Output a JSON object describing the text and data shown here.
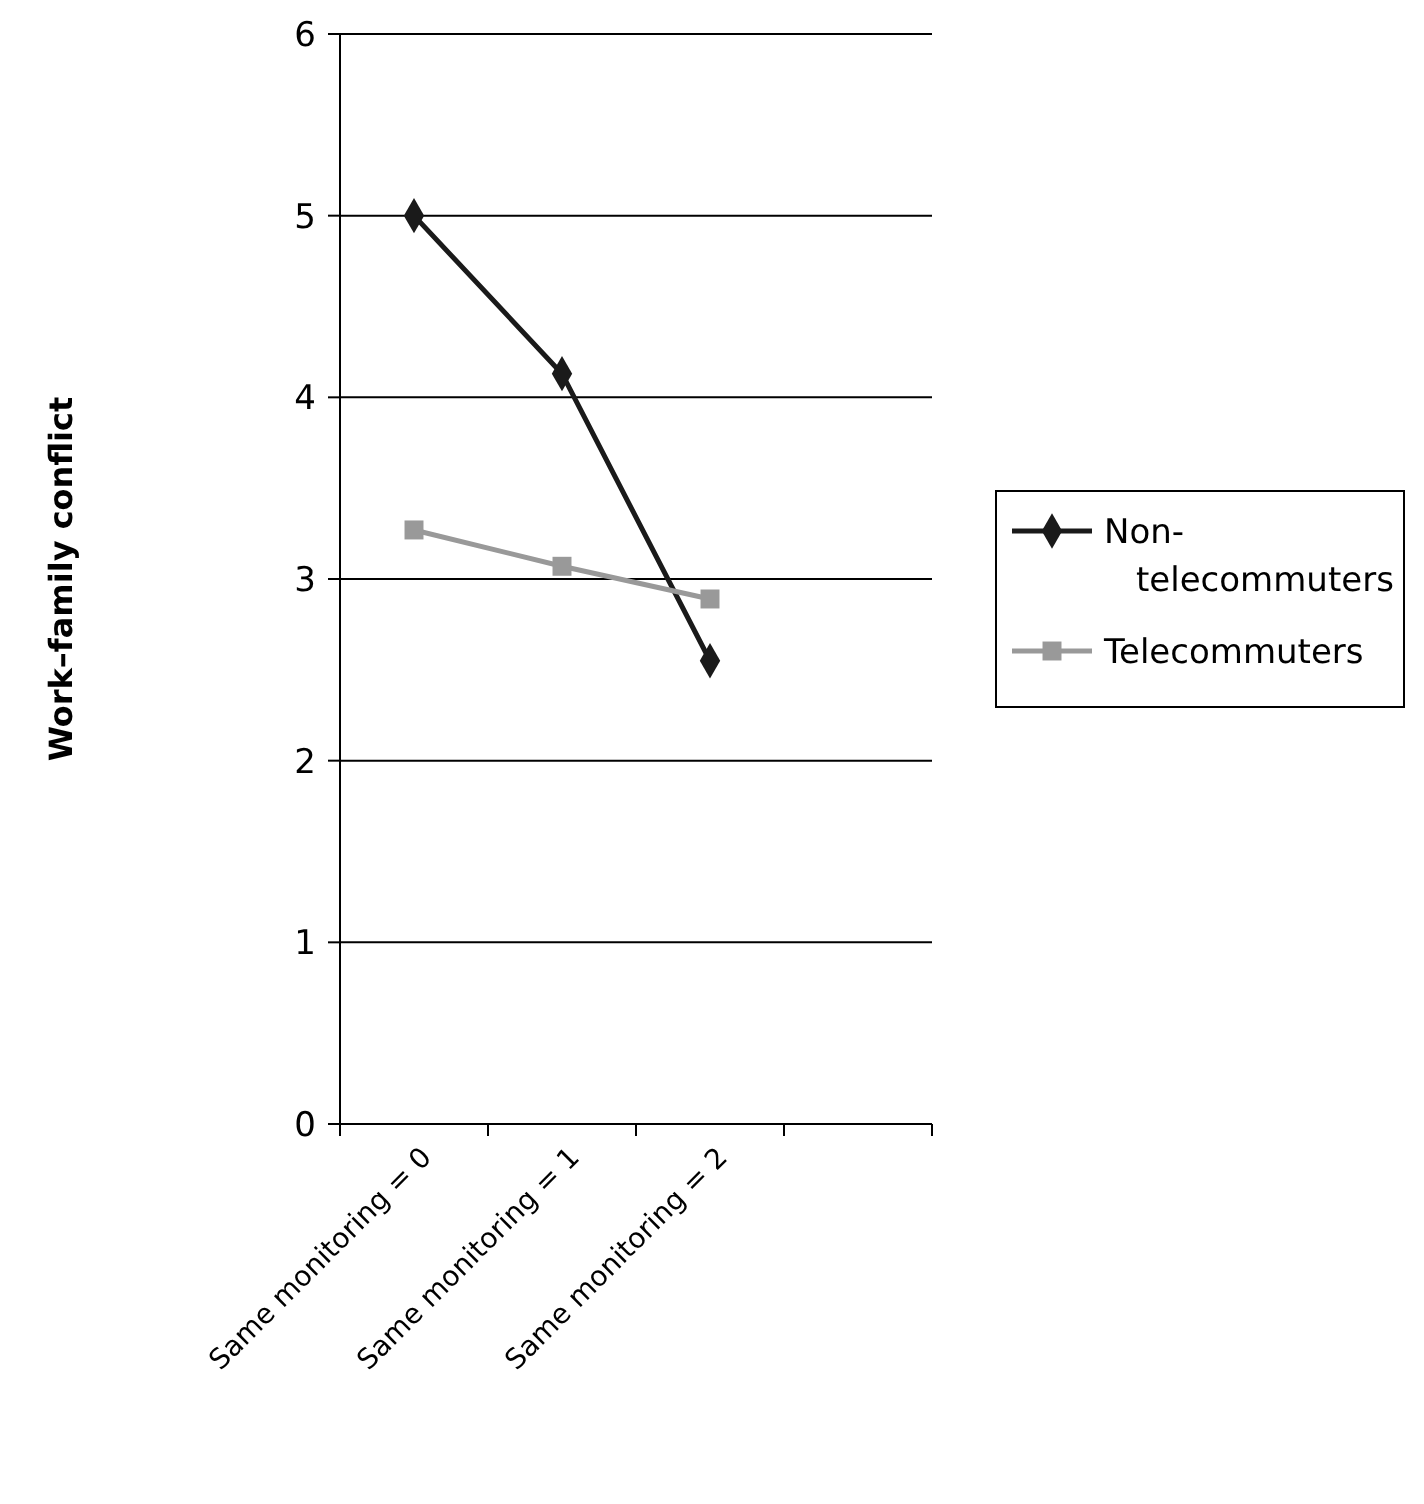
{
  "chart_data": {
    "type": "line",
    "ylabel": "Work–family conflict",
    "categories": [
      "Same monitoring = 0",
      "Same monitoring = 1",
      "Same monitoring = 2",
      null
    ],
    "series": [
      {
        "name": "Non-telecommuters",
        "color": "#1a1a1a",
        "marker": "diamond",
        "values": [
          5.0,
          4.13,
          2.55,
          null
        ]
      },
      {
        "name": "Telecommuters",
        "color": "#999999",
        "marker": "square",
        "values": [
          3.27,
          3.07,
          2.89,
          null
        ]
      }
    ],
    "ylim": [
      0,
      6
    ],
    "yticks": [
      0,
      1,
      2,
      3,
      4,
      5,
      6
    ],
    "grid": "y",
    "legend": "right"
  }
}
